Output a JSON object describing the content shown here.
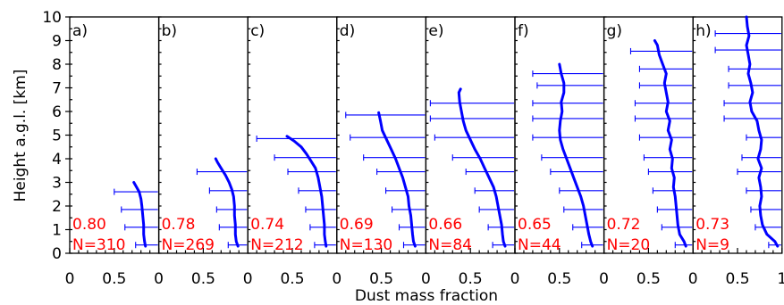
{
  "chart_data": {
    "type": "line",
    "ylabel": "Height a.g.l. [km]",
    "xlabel": "Dust mass fraction",
    "ylim": [
      0,
      10
    ],
    "xlim": [
      0,
      1
    ],
    "yticks": [
      "0",
      "1",
      "2",
      "3",
      "4",
      "5",
      "6",
      "7",
      "8",
      "9",
      "10"
    ],
    "xticks": [
      "0",
      "0.5"
    ],
    "last_xtick": "1",
    "line_color": "#0000ff",
    "stat_color": "#ff0000",
    "panels": [
      {
        "label": "a)",
        "mean": "0.80",
        "count": "N=310",
        "profile": [
          [
            0.85,
            0.3
          ],
          [
            0.84,
            0.5
          ],
          [
            0.83,
            0.8
          ],
          [
            0.83,
            1.2
          ],
          [
            0.82,
            1.6
          ],
          [
            0.81,
            2.0
          ],
          [
            0.8,
            2.3
          ],
          [
            0.78,
            2.6
          ],
          [
            0.75,
            2.8
          ],
          [
            0.72,
            3.0
          ]
        ],
        "errorbars": [
          [
            0.5,
            2.6
          ],
          [
            0.58,
            1.85
          ],
          [
            0.62,
            1.1
          ],
          [
            0.74,
            0.35
          ]
        ]
      },
      {
        "label": "b)",
        "mean": "0.78",
        "count": "N=269",
        "profile": [
          [
            0.89,
            0.3
          ],
          [
            0.87,
            0.5
          ],
          [
            0.86,
            0.8
          ],
          [
            0.86,
            1.2
          ],
          [
            0.85,
            1.6
          ],
          [
            0.85,
            2.0
          ],
          [
            0.84,
            2.4
          ],
          [
            0.82,
            2.7
          ],
          [
            0.79,
            3.0
          ],
          [
            0.75,
            3.3
          ],
          [
            0.7,
            3.6
          ],
          [
            0.66,
            3.85
          ],
          [
            0.64,
            4.0
          ]
        ],
        "errorbars": [
          [
            0.43,
            3.45
          ],
          [
            0.57,
            2.65
          ],
          [
            0.65,
            1.85
          ],
          [
            0.68,
            1.1
          ],
          [
            0.78,
            0.35
          ]
        ]
      },
      {
        "label": "c)",
        "mean": "0.74",
        "count": "N=212",
        "profile": [
          [
            0.88,
            0.3
          ],
          [
            0.87,
            0.5
          ],
          [
            0.86,
            0.8
          ],
          [
            0.86,
            1.2
          ],
          [
            0.85,
            1.6
          ],
          [
            0.84,
            2.0
          ],
          [
            0.83,
            2.4
          ],
          [
            0.81,
            2.8
          ],
          [
            0.79,
            3.2
          ],
          [
            0.76,
            3.6
          ],
          [
            0.71,
            3.9
          ],
          [
            0.66,
            4.2
          ],
          [
            0.6,
            4.5
          ],
          [
            0.52,
            4.75
          ],
          [
            0.44,
            4.95
          ]
        ],
        "errorbars": [
          [
            0.1,
            4.85
          ],
          [
            0.3,
            4.05
          ],
          [
            0.45,
            3.45
          ],
          [
            0.57,
            2.65
          ],
          [
            0.65,
            1.85
          ],
          [
            0.7,
            1.1
          ],
          [
            0.75,
            0.35
          ]
        ]
      },
      {
        "label": "d)",
        "mean": "0.69",
        "count": "N=130",
        "profile": [
          [
            0.88,
            0.3
          ],
          [
            0.86,
            0.5
          ],
          [
            0.85,
            0.8
          ],
          [
            0.84,
            1.2
          ],
          [
            0.83,
            1.6
          ],
          [
            0.81,
            2.0
          ],
          [
            0.8,
            2.4
          ],
          [
            0.77,
            2.8
          ],
          [
            0.74,
            3.2
          ],
          [
            0.7,
            3.6
          ],
          [
            0.66,
            4.0
          ],
          [
            0.61,
            4.4
          ],
          [
            0.56,
            4.8
          ],
          [
            0.51,
            5.2
          ],
          [
            0.49,
            5.6
          ],
          [
            0.47,
            5.95
          ]
        ],
        "errorbars": [
          [
            0.1,
            5.85
          ],
          [
            0.15,
            4.9
          ],
          [
            0.3,
            4.05
          ],
          [
            0.45,
            3.45
          ],
          [
            0.55,
            2.65
          ],
          [
            0.62,
            1.85
          ],
          [
            0.7,
            1.1
          ],
          [
            0.75,
            0.35
          ]
        ]
      },
      {
        "label": "e)",
        "mean": "0.66",
        "count": "N=84",
        "profile": [
          [
            0.89,
            0.3
          ],
          [
            0.87,
            0.5
          ],
          [
            0.86,
            0.8
          ],
          [
            0.85,
            1.2
          ],
          [
            0.83,
            1.6
          ],
          [
            0.81,
            2.0
          ],
          [
            0.79,
            2.4
          ],
          [
            0.76,
            2.8
          ],
          [
            0.71,
            3.2
          ],
          [
            0.66,
            3.6
          ],
          [
            0.61,
            4.0
          ],
          [
            0.55,
            4.4
          ],
          [
            0.5,
            4.8
          ],
          [
            0.45,
            5.2
          ],
          [
            0.42,
            5.6
          ],
          [
            0.4,
            6.0
          ],
          [
            0.38,
            6.4
          ],
          [
            0.37,
            6.8
          ],
          [
            0.39,
            6.95
          ]
        ],
        "errorbars": [
          [
            0.05,
            6.35
          ],
          [
            0.05,
            5.7
          ],
          [
            0.1,
            4.9
          ],
          [
            0.3,
            4.05
          ],
          [
            0.45,
            3.45
          ],
          [
            0.55,
            2.65
          ],
          [
            0.6,
            1.85
          ],
          [
            0.7,
            1.1
          ],
          [
            0.75,
            0.35
          ]
        ]
      },
      {
        "label": "f)",
        "mean": "0.65",
        "count": "N=44",
        "profile": [
          [
            0.87,
            0.3
          ],
          [
            0.85,
            0.5
          ],
          [
            0.83,
            0.8
          ],
          [
            0.81,
            1.2
          ],
          [
            0.79,
            1.6
          ],
          [
            0.77,
            2.0
          ],
          [
            0.74,
            2.4
          ],
          [
            0.7,
            2.8
          ],
          [
            0.66,
            3.2
          ],
          [
            0.62,
            3.6
          ],
          [
            0.58,
            4.0
          ],
          [
            0.54,
            4.4
          ],
          [
            0.51,
            4.8
          ],
          [
            0.5,
            5.2
          ],
          [
            0.51,
            5.6
          ],
          [
            0.53,
            6.0
          ],
          [
            0.52,
            6.4
          ],
          [
            0.55,
            6.8
          ],
          [
            0.55,
            7.2
          ],
          [
            0.52,
            7.6
          ],
          [
            0.5,
            8.0
          ]
        ],
        "errorbars": [
          [
            0.2,
            7.6
          ],
          [
            0.25,
            7.1
          ],
          [
            0.2,
            6.35
          ],
          [
            0.2,
            5.7
          ],
          [
            0.2,
            4.9
          ],
          [
            0.3,
            4.05
          ],
          [
            0.4,
            3.45
          ],
          [
            0.5,
            2.65
          ],
          [
            0.55,
            1.85
          ],
          [
            0.65,
            1.1
          ],
          [
            0.75,
            0.35
          ]
        ]
      },
      {
        "label": "g)",
        "mean": "0.72",
        "count": "N=20",
        "profile": [
          [
            0.92,
            0.3
          ],
          [
            0.9,
            0.5
          ],
          [
            0.85,
            0.8
          ],
          [
            0.83,
            1.2
          ],
          [
            0.82,
            1.6
          ],
          [
            0.81,
            2.0
          ],
          [
            0.8,
            2.4
          ],
          [
            0.78,
            2.8
          ],
          [
            0.79,
            3.2
          ],
          [
            0.76,
            3.6
          ],
          [
            0.77,
            4.0
          ],
          [
            0.74,
            4.4
          ],
          [
            0.76,
            4.8
          ],
          [
            0.72,
            5.2
          ],
          [
            0.74,
            5.6
          ],
          [
            0.7,
            6.0
          ],
          [
            0.72,
            6.4
          ],
          [
            0.7,
            6.8
          ],
          [
            0.68,
            7.2
          ],
          [
            0.7,
            7.6
          ],
          [
            0.66,
            8.0
          ],
          [
            0.62,
            8.4
          ],
          [
            0.6,
            8.8
          ],
          [
            0.57,
            9.0
          ]
        ],
        "errorbars": [
          [
            0.3,
            8.55
          ],
          [
            0.4,
            7.8
          ],
          [
            0.4,
            7.1
          ],
          [
            0.35,
            6.35
          ],
          [
            0.35,
            5.7
          ],
          [
            0.4,
            4.9
          ],
          [
            0.45,
            4.05
          ],
          [
            0.5,
            3.45
          ],
          [
            0.55,
            2.65
          ],
          [
            0.6,
            1.85
          ],
          [
            0.65,
            1.1
          ],
          [
            0.8,
            0.35
          ]
        ]
      },
      {
        "label": "h)",
        "mean": "0.73",
        "count": "N=9",
        "profile": [
          [
            0.95,
            0.3
          ],
          [
            0.92,
            0.5
          ],
          [
            0.83,
            0.8
          ],
          [
            0.78,
            1.2
          ],
          [
            0.76,
            1.6
          ],
          [
            0.75,
            2.0
          ],
          [
            0.77,
            2.4
          ],
          [
            0.76,
            2.8
          ],
          [
            0.74,
            3.2
          ],
          [
            0.77,
            3.6
          ],
          [
            0.73,
            4.0
          ],
          [
            0.76,
            4.4
          ],
          [
            0.77,
            4.8
          ],
          [
            0.74,
            5.2
          ],
          [
            0.72,
            5.6
          ],
          [
            0.66,
            6.0
          ],
          [
            0.64,
            6.4
          ],
          [
            0.67,
            6.8
          ],
          [
            0.65,
            7.2
          ],
          [
            0.62,
            7.6
          ],
          [
            0.64,
            8.0
          ],
          [
            0.62,
            8.4
          ],
          [
            0.6,
            8.8
          ],
          [
            0.63,
            9.2
          ],
          [
            0.61,
            9.6
          ],
          [
            0.6,
            10.0
          ]
        ],
        "errorbars": [
          [
            0.25,
            9.3
          ],
          [
            0.25,
            8.6
          ],
          [
            0.4,
            7.8
          ],
          [
            0.4,
            7.1
          ],
          [
            0.35,
            6.35
          ],
          [
            0.35,
            5.7
          ],
          [
            0.6,
            4.9
          ],
          [
            0.55,
            4.05
          ],
          [
            0.5,
            3.45
          ],
          [
            0.6,
            2.65
          ],
          [
            0.65,
            1.85
          ],
          [
            0.7,
            1.1
          ],
          [
            0.85,
            0.35
          ]
        ]
      }
    ]
  }
}
